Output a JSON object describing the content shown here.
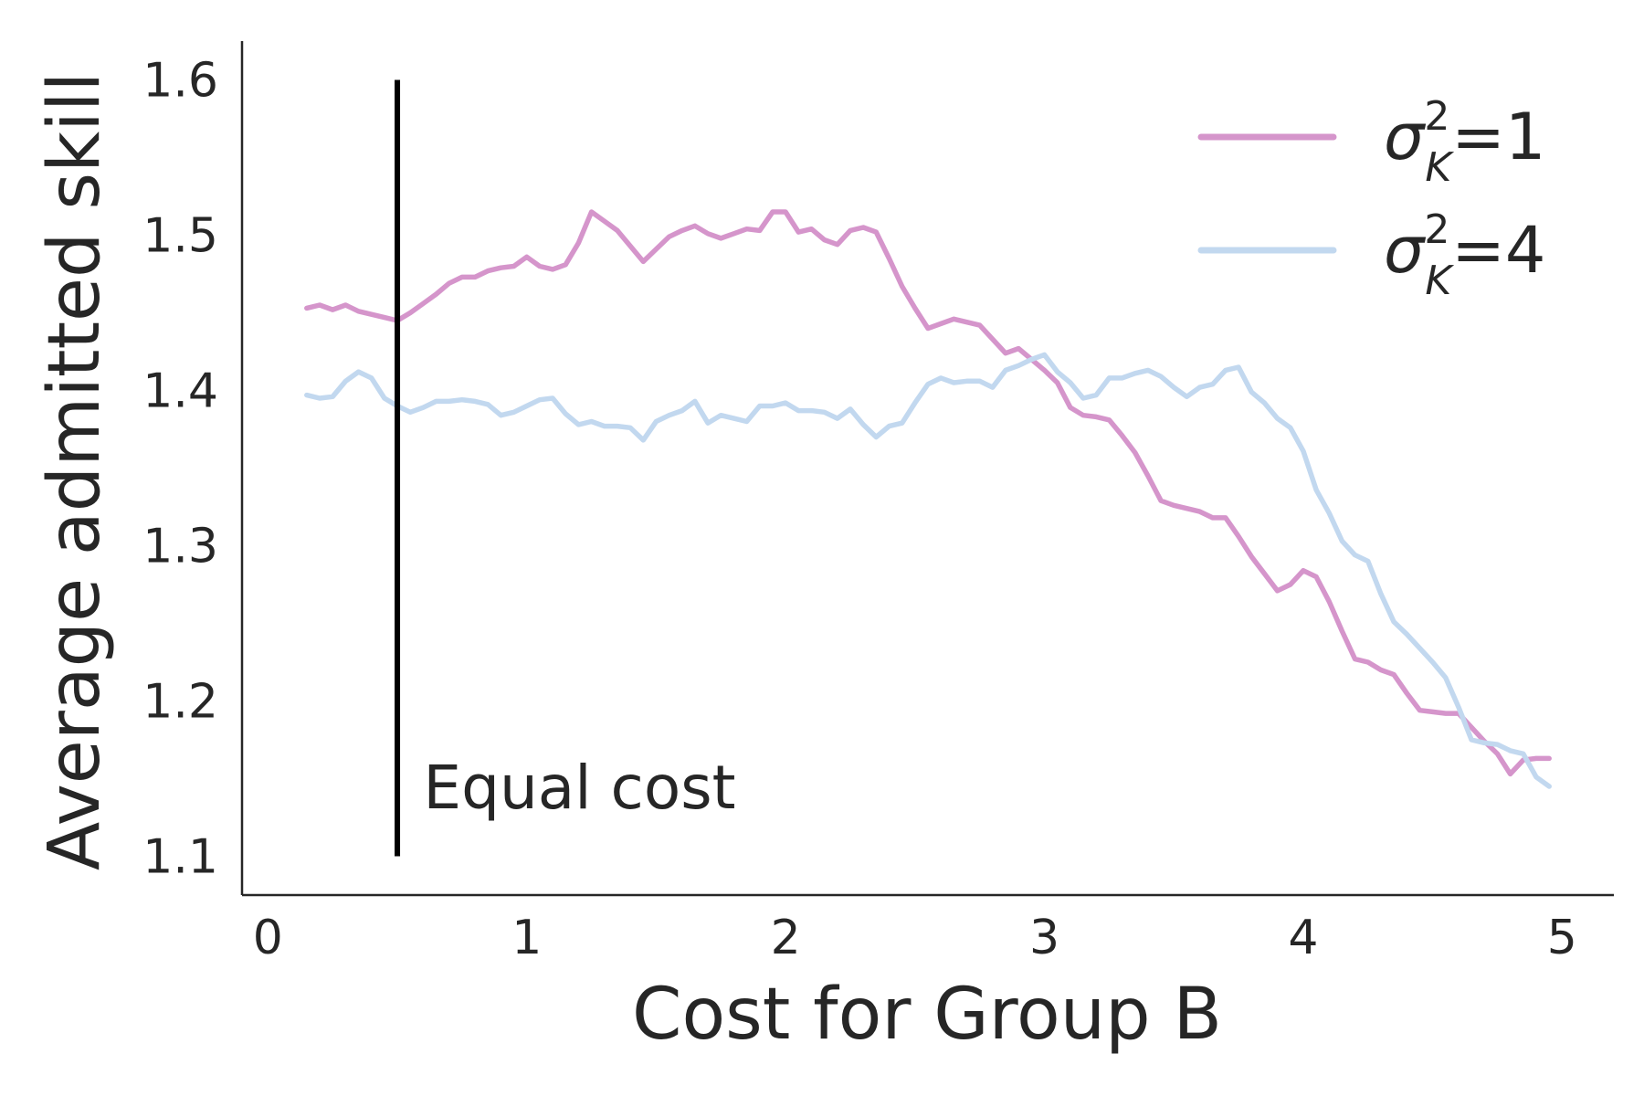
{
  "chart_data": {
    "type": "line",
    "title": "",
    "xlabel": "Cost for Group B",
    "ylabel": "Average admitted skill",
    "xlim": [
      -0.1,
      5.2
    ],
    "ylim": [
      1.075,
      1.625
    ],
    "xticks": [
      0,
      1,
      2,
      3,
      4,
      5
    ],
    "yticks": [
      1.1,
      1.2,
      1.3,
      1.4,
      1.5,
      1.6
    ],
    "xtick_labels": [
      "0",
      "1",
      "2",
      "3",
      "4",
      "5"
    ],
    "ytick_labels": [
      "1.1",
      "1.2",
      "1.3",
      "1.4",
      "1.5",
      "1.6"
    ],
    "grid": false,
    "legend_position": "top-right",
    "vline": {
      "x": 0.5,
      "y_range": [
        1.1,
        1.6
      ],
      "color": "#000000",
      "label": "Equal cost",
      "label_anchor": [
        0.6,
        1.145
      ]
    },
    "series": [
      {
        "name": "σK²=1",
        "legend": {
          "base": "σ",
          "sup": "2",
          "sub": "K",
          "suffix": "=1"
        },
        "color": "#d595cb",
        "points": [
          [
            0.15,
            1.453
          ],
          [
            0.2,
            1.455
          ],
          [
            0.25,
            1.452
          ],
          [
            0.3,
            1.455
          ],
          [
            0.35,
            1.451
          ],
          [
            0.4,
            1.449
          ],
          [
            0.45,
            1.447
          ],
          [
            0.5,
            1.445
          ],
          [
            0.55,
            1.45
          ],
          [
            0.6,
            1.456
          ],
          [
            0.65,
            1.462
          ],
          [
            0.7,
            1.469
          ],
          [
            0.75,
            1.473
          ],
          [
            0.8,
            1.473
          ],
          [
            0.85,
            1.477
          ],
          [
            0.9,
            1.479
          ],
          [
            0.95,
            1.48
          ],
          [
            1.0,
            1.486
          ],
          [
            1.05,
            1.48
          ],
          [
            1.1,
            1.478
          ],
          [
            1.15,
            1.481
          ],
          [
            1.2,
            1.495
          ],
          [
            1.25,
            1.515
          ],
          [
            1.3,
            1.509
          ],
          [
            1.35,
            1.503
          ],
          [
            1.4,
            1.493
          ],
          [
            1.45,
            1.483
          ],
          [
            1.5,
            1.491
          ],
          [
            1.55,
            1.499
          ],
          [
            1.6,
            1.503
          ],
          [
            1.65,
            1.506
          ],
          [
            1.7,
            1.501
          ],
          [
            1.75,
            1.498
          ],
          [
            1.8,
            1.501
          ],
          [
            1.85,
            1.504
          ],
          [
            1.9,
            1.503
          ],
          [
            1.95,
            1.515
          ],
          [
            2.0,
            1.515
          ],
          [
            2.05,
            1.502
          ],
          [
            2.1,
            1.504
          ],
          [
            2.15,
            1.497
          ],
          [
            2.2,
            1.494
          ],
          [
            2.25,
            1.503
          ],
          [
            2.3,
            1.505
          ],
          [
            2.35,
            1.502
          ],
          [
            2.4,
            1.485
          ],
          [
            2.45,
            1.467
          ],
          [
            2.5,
            1.453
          ],
          [
            2.55,
            1.44
          ],
          [
            2.6,
            1.443
          ],
          [
            2.65,
            1.446
          ],
          [
            2.7,
            1.444
          ],
          [
            2.75,
            1.442
          ],
          [
            2.8,
            1.433
          ],
          [
            2.85,
            1.424
          ],
          [
            2.9,
            1.427
          ],
          [
            2.95,
            1.42
          ],
          [
            3.0,
            1.413
          ],
          [
            3.05,
            1.405
          ],
          [
            3.1,
            1.389
          ],
          [
            3.15,
            1.384
          ],
          [
            3.2,
            1.383
          ],
          [
            3.25,
            1.381
          ],
          [
            3.3,
            1.371
          ],
          [
            3.35,
            1.36
          ],
          [
            3.4,
            1.345
          ],
          [
            3.45,
            1.329
          ],
          [
            3.5,
            1.326
          ],
          [
            3.55,
            1.324
          ],
          [
            3.6,
            1.322
          ],
          [
            3.65,
            1.318
          ],
          [
            3.7,
            1.318
          ],
          [
            3.75,
            1.306
          ],
          [
            3.8,
            1.293
          ],
          [
            3.85,
            1.282
          ],
          [
            3.9,
            1.271
          ],
          [
            3.95,
            1.275
          ],
          [
            4.0,
            1.284
          ],
          [
            4.05,
            1.28
          ],
          [
            4.1,
            1.264
          ],
          [
            4.15,
            1.245
          ],
          [
            4.2,
            1.227
          ],
          [
            4.25,
            1.225
          ],
          [
            4.3,
            1.22
          ],
          [
            4.35,
            1.217
          ],
          [
            4.4,
            1.205
          ],
          [
            4.45,
            1.194
          ],
          [
            4.5,
            1.193
          ],
          [
            4.55,
            1.192
          ],
          [
            4.6,
            1.192
          ],
          [
            4.65,
            1.183
          ],
          [
            4.7,
            1.174
          ],
          [
            4.75,
            1.166
          ],
          [
            4.8,
            1.153
          ],
          [
            4.85,
            1.162
          ],
          [
            4.9,
            1.163
          ],
          [
            4.95,
            1.163
          ]
        ]
      },
      {
        "name": "σK²=4",
        "legend": {
          "base": "σ",
          "sup": "2",
          "sub": "K",
          "suffix": "=4"
        },
        "color": "#c2d8ef",
        "points": [
          [
            0.15,
            1.397
          ],
          [
            0.2,
            1.395
          ],
          [
            0.25,
            1.396
          ],
          [
            0.3,
            1.406
          ],
          [
            0.35,
            1.412
          ],
          [
            0.4,
            1.408
          ],
          [
            0.45,
            1.395
          ],
          [
            0.5,
            1.39
          ],
          [
            0.55,
            1.386
          ],
          [
            0.6,
            1.389
          ],
          [
            0.65,
            1.393
          ],
          [
            0.7,
            1.393
          ],
          [
            0.75,
            1.394
          ],
          [
            0.8,
            1.393
          ],
          [
            0.85,
            1.391
          ],
          [
            0.9,
            1.384
          ],
          [
            0.95,
            1.386
          ],
          [
            1.0,
            1.39
          ],
          [
            1.05,
            1.394
          ],
          [
            1.1,
            1.395
          ],
          [
            1.15,
            1.385
          ],
          [
            1.2,
            1.378
          ],
          [
            1.25,
            1.38
          ],
          [
            1.3,
            1.377
          ],
          [
            1.35,
            1.377
          ],
          [
            1.4,
            1.376
          ],
          [
            1.45,
            1.368
          ],
          [
            1.5,
            1.38
          ],
          [
            1.55,
            1.384
          ],
          [
            1.6,
            1.387
          ],
          [
            1.65,
            1.393
          ],
          [
            1.7,
            1.379
          ],
          [
            1.75,
            1.384
          ],
          [
            1.8,
            1.382
          ],
          [
            1.85,
            1.38
          ],
          [
            1.9,
            1.39
          ],
          [
            1.95,
            1.39
          ],
          [
            2.0,
            1.392
          ],
          [
            2.05,
            1.387
          ],
          [
            2.1,
            1.387
          ],
          [
            2.15,
            1.386
          ],
          [
            2.2,
            1.382
          ],
          [
            2.25,
            1.388
          ],
          [
            2.3,
            1.378
          ],
          [
            2.35,
            1.37
          ],
          [
            2.4,
            1.377
          ],
          [
            2.45,
            1.379
          ],
          [
            2.5,
            1.392
          ],
          [
            2.55,
            1.404
          ],
          [
            2.6,
            1.408
          ],
          [
            2.65,
            1.405
          ],
          [
            2.7,
            1.406
          ],
          [
            2.75,
            1.406
          ],
          [
            2.8,
            1.402
          ],
          [
            2.85,
            1.413
          ],
          [
            2.9,
            1.416
          ],
          [
            2.95,
            1.42
          ],
          [
            3.0,
            1.423
          ],
          [
            3.05,
            1.412
          ],
          [
            3.1,
            1.405
          ],
          [
            3.15,
            1.395
          ],
          [
            3.2,
            1.397
          ],
          [
            3.25,
            1.408
          ],
          [
            3.3,
            1.408
          ],
          [
            3.35,
            1.411
          ],
          [
            3.4,
            1.413
          ],
          [
            3.45,
            1.409
          ],
          [
            3.5,
            1.402
          ],
          [
            3.55,
            1.396
          ],
          [
            3.6,
            1.402
          ],
          [
            3.65,
            1.404
          ],
          [
            3.7,
            1.413
          ],
          [
            3.75,
            1.415
          ],
          [
            3.8,
            1.399
          ],
          [
            3.85,
            1.392
          ],
          [
            3.9,
            1.382
          ],
          [
            3.95,
            1.376
          ],
          [
            4.0,
            1.361
          ],
          [
            4.05,
            1.336
          ],
          [
            4.1,
            1.321
          ],
          [
            4.15,
            1.303
          ],
          [
            4.2,
            1.294
          ],
          [
            4.25,
            1.29
          ],
          [
            4.3,
            1.269
          ],
          [
            4.35,
            1.251
          ],
          [
            4.4,
            1.243
          ],
          [
            4.45,
            1.234
          ],
          [
            4.5,
            1.225
          ],
          [
            4.55,
            1.215
          ],
          [
            4.6,
            1.196
          ],
          [
            4.65,
            1.175
          ],
          [
            4.7,
            1.173
          ],
          [
            4.75,
            1.172
          ],
          [
            4.8,
            1.168
          ],
          [
            4.85,
            1.166
          ],
          [
            4.9,
            1.151
          ],
          [
            4.95,
            1.145
          ]
        ]
      }
    ]
  }
}
